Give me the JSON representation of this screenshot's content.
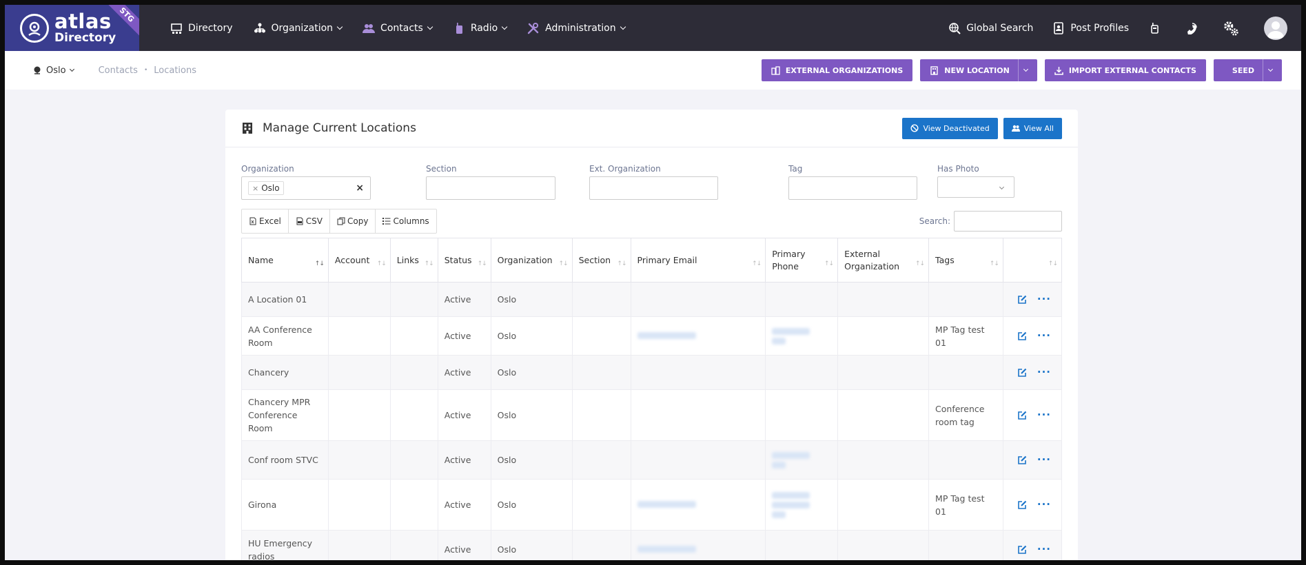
{
  "brand": {
    "line1": "atlas",
    "line2": "Directory",
    "badge": "STG"
  },
  "nav": {
    "items": [
      {
        "label": "Directory",
        "icon": "directory-icon",
        "dropdown": false
      },
      {
        "label": "Organization",
        "icon": "organization-icon",
        "dropdown": true
      },
      {
        "label": "Contacts",
        "icon": "contacts-icon",
        "dropdown": true
      },
      {
        "label": "Radio",
        "icon": "radio-icon",
        "dropdown": true
      },
      {
        "label": "Administration",
        "icon": "wrench-icon",
        "dropdown": true
      }
    ],
    "global_search": "Global Search",
    "post_profiles": "Post Profiles"
  },
  "subheader": {
    "site": "Oslo",
    "breadcrumb": [
      "Contacts",
      "Locations"
    ],
    "actions": {
      "external_orgs": "EXTERNAL ORGANIZATIONS",
      "new_location": "NEW LOCATION",
      "import_contacts": "IMPORT EXTERNAL CONTACTS",
      "seed": "SEED"
    }
  },
  "card": {
    "title": "Manage Current Locations",
    "view_deactivated": "View Deactivated",
    "view_all": "View All"
  },
  "filters": {
    "organization_label": "Organization",
    "organization_value": "Oslo",
    "section_label": "Section",
    "ext_org_label": "Ext. Organization",
    "tag_label": "Tag",
    "has_photo_label": "Has Photo"
  },
  "toolbar": {
    "excel": "Excel",
    "csv": "CSV",
    "copy": "Copy",
    "columns": "Columns"
  },
  "search_label": "Search:",
  "table": {
    "columns": [
      "Name",
      "Account",
      "Links",
      "Status",
      "Organization",
      "Section",
      "Primary Email",
      "Primary Phone",
      "External Organization",
      "Tags",
      ""
    ],
    "rows": [
      {
        "name": "A Location 01",
        "status": "Active",
        "org": "Oslo",
        "email_blur": 0,
        "phone_blur": 0,
        "tags": ""
      },
      {
        "name": "AA Conference Room",
        "status": "Active",
        "org": "Oslo",
        "email_blur": 1,
        "phone_blur": 2,
        "tags": "MP Tag test 01"
      },
      {
        "name": "Chancery",
        "status": "Active",
        "org": "Oslo",
        "email_blur": 0,
        "phone_blur": 0,
        "tags": ""
      },
      {
        "name": "Chancery MPR Conference Room",
        "status": "Active",
        "org": "Oslo",
        "email_blur": 0,
        "phone_blur": 0,
        "tags": "Conference room tag"
      },
      {
        "name": "Conf room STVC",
        "status": "Active",
        "org": "Oslo",
        "email_blur": 0,
        "phone_blur": 2,
        "tags": ""
      },
      {
        "name": "Girona",
        "status": "Active",
        "org": "Oslo",
        "email_blur": 1,
        "phone_blur": 3,
        "tags": "MP Tag test 01"
      },
      {
        "name": "HU Emergency radios",
        "status": "Active",
        "org": "Oslo",
        "email_blur": 1,
        "phone_blur": 0,
        "tags": ""
      }
    ]
  },
  "colors": {
    "nav_bg": "#2d2c37",
    "brand_bg": "#3a3d8f",
    "purple": "#7e58c2",
    "blue": "#1b74c9"
  }
}
